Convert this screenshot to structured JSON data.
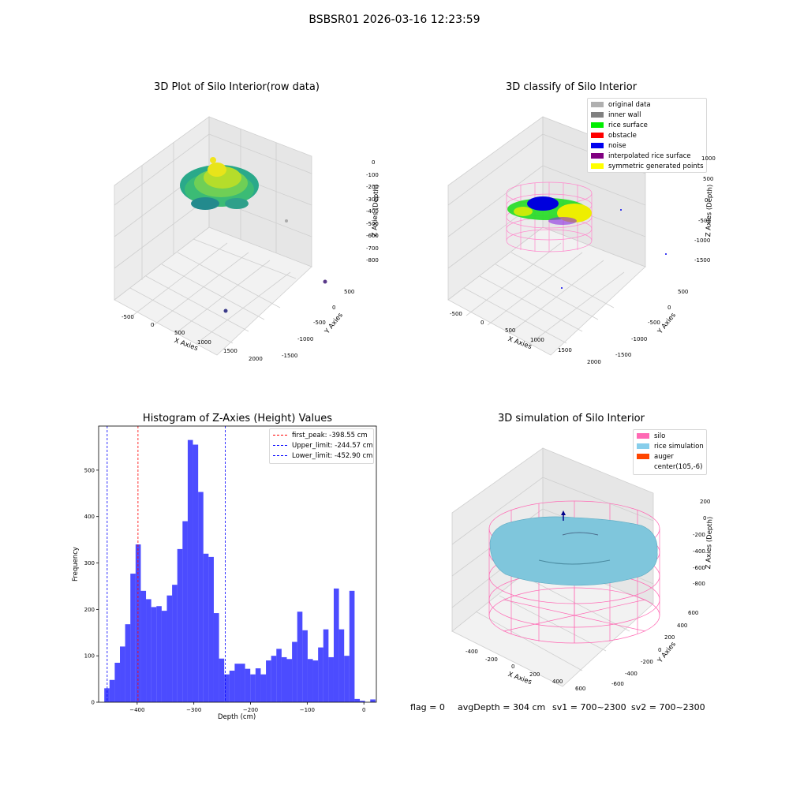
{
  "suptitle": "BSBSR01 2026-03-16 12:23:59",
  "panel1": {
    "title": "3D Plot of Silo Interior(row data)",
    "xlabel": "X Axies",
    "ylabel": "Y Axies",
    "zlabel": "Z Axies (Depth)",
    "xticks": [
      "-500",
      "0",
      "500",
      "1000",
      "1500",
      "2000"
    ],
    "yticks": [
      "500",
      "0",
      "-500",
      "-1000",
      "-1500"
    ],
    "zticks": [
      "0",
      "-100",
      "-200",
      "-300",
      "-400",
      "-500",
      "-600",
      "-700",
      "-800"
    ]
  },
  "panel2": {
    "title": "3D classify of Silo Interior",
    "xlabel": "X Axies",
    "ylabel": "Y Axies",
    "zlabel": "Z Axies (Depth)",
    "xticks": [
      "-500",
      "0",
      "500",
      "1000",
      "1500",
      "2000"
    ],
    "yticks": [
      "500",
      "0",
      "-500",
      "-1000",
      "-1500"
    ],
    "zticks": [
      "1000",
      "500",
      "0",
      "-500",
      "-1000",
      "-1500"
    ],
    "legend": [
      {
        "label": "original data",
        "color": "#b0b0b0"
      },
      {
        "label": "inner wall",
        "color": "#808080"
      },
      {
        "label": "rice surface",
        "color": "#00ee00"
      },
      {
        "label": "obstacle",
        "color": "#ff0000"
      },
      {
        "label": "noise",
        "color": "#0000ee"
      },
      {
        "label": "interpolated rice surface",
        "color": "#800080"
      },
      {
        "label": "symmetric generated points",
        "color": "#ffff00"
      }
    ]
  },
  "panel4": {
    "title": "3D simulation of Silo Interior",
    "xlabel": "X Axies",
    "ylabel": "Y Axies",
    "zlabel": "Z Axies (Depth)",
    "xticks": [
      "-400",
      "-200",
      "0",
      "200",
      "400",
      "600"
    ],
    "yticks": [
      "600",
      "400",
      "200",
      "0",
      "-200",
      "-400",
      "-600"
    ],
    "zticks": [
      "200",
      "0",
      "-200",
      "-400",
      "-600",
      "-800"
    ],
    "legend": [
      {
        "label": "silo",
        "color": "#ff69b4"
      },
      {
        "label": "rice simulation",
        "color": "#87ceeb"
      },
      {
        "label": "auger",
        "color": "#ff4500"
      },
      {
        "label": "center(105,-6)",
        "color": ""
      }
    ]
  },
  "bottom_text": {
    "flag": "flag = 0",
    "avg": "avgDepth = 304 cm",
    "sv1": "sv1 = 700~2300",
    "sv2": "sv2 = 700~2300"
  },
  "chart_data": [
    {
      "type": "histogram",
      "title": "Histogram of Z-Axies (Height) Values",
      "xlabel": "Depth (cm)",
      "ylabel": "Frequency",
      "xlim": [
        -468,
        22
      ],
      "ylim": [
        0,
        595
      ],
      "xticks": [
        -400,
        -300,
        -200,
        -100,
        0
      ],
      "yticks": [
        0,
        100,
        200,
        300,
        400,
        500
      ],
      "bar_color": "#0000ff",
      "bin_start": -458,
      "bin_width": 9.2,
      "counts": [
        30,
        48,
        85,
        120,
        168,
        277,
        340,
        240,
        222,
        205,
        207,
        197,
        230,
        253,
        330,
        390,
        565,
        555,
        453,
        320,
        313,
        192,
        94,
        60,
        68,
        83,
        83,
        72,
        60,
        73,
        60,
        90,
        100,
        115,
        97,
        93,
        130,
        195,
        155,
        93,
        90,
        118,
        157,
        97,
        245,
        157,
        100,
        240,
        7,
        3,
        0,
        6
      ],
      "vlines": [
        {
          "name": "first_peak: -398.55 cm",
          "x": -398.55,
          "color": "#ff0000"
        },
        {
          "name": "Upper_limit: -244.57 cm",
          "x": -244.57,
          "color": "#0000ff"
        },
        {
          "name": "Lower_limit: -452.90 cm",
          "x": -452.9,
          "color": "#0000ff"
        }
      ],
      "legend_position": "top-right"
    }
  ]
}
